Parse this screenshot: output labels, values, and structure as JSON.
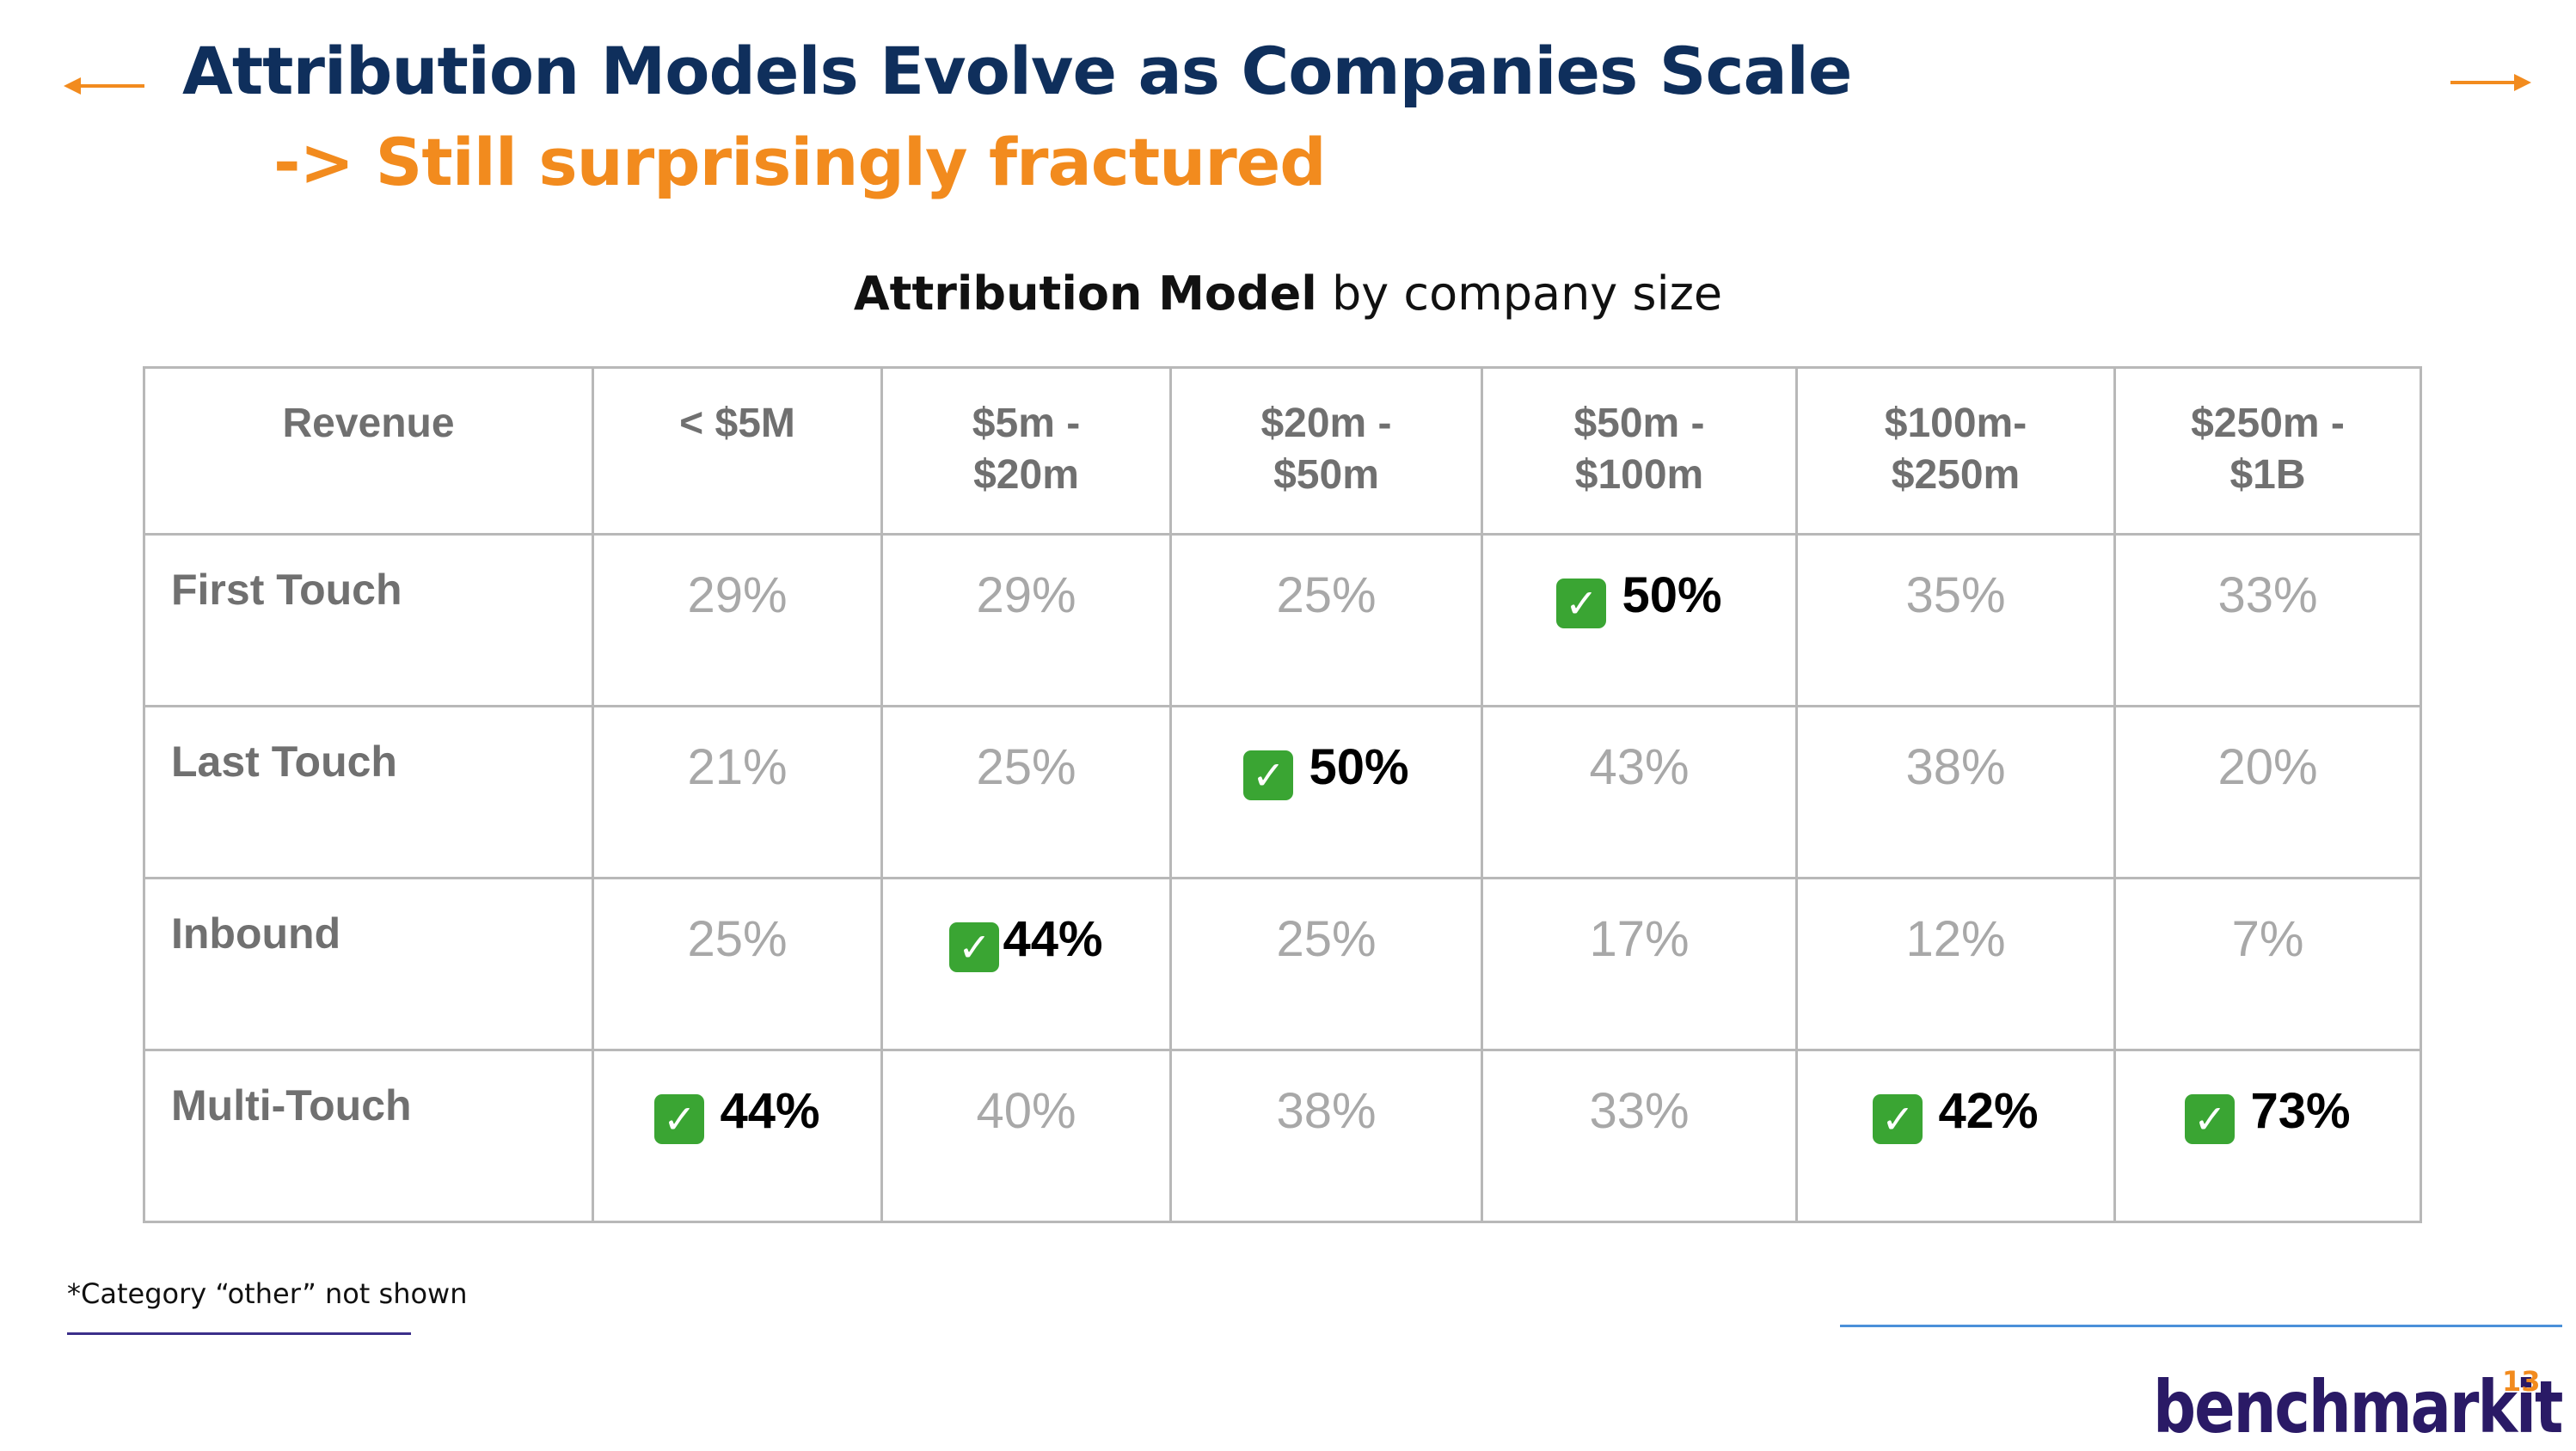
{
  "header": {
    "title": "Attribution Models Evolve as Companies Scale",
    "subtitle": "-> Still surprisingly fractured"
  },
  "colors": {
    "title": "#0f2f5c",
    "accent": "#f28b1e",
    "check": "#3aa533",
    "logo": "#2a1a66",
    "footnote_line": "#3b2f8a",
    "right_line": "#4a90d9"
  },
  "icons": {
    "check": "check-mark-icon",
    "left_arrow": "arrow-left-icon",
    "right_arrow": "arrow-right-icon"
  },
  "chart_data": {
    "type": "table",
    "title_bold": "Attribution Model",
    "title_rest": "by company size",
    "row_header": "Revenue",
    "columns": [
      [
        "< $5M"
      ],
      [
        "$5m -",
        "$20m"
      ],
      [
        "$20m -",
        "$50m"
      ],
      [
        "$50m -",
        "$100m"
      ],
      [
        "$100m-",
        "$250m"
      ],
      [
        "$250m -",
        "$1B"
      ]
    ],
    "rows": [
      {
        "label": "First Touch",
        "values": [
          "29%",
          "29%",
          "25%",
          "50%",
          "35%",
          "33%"
        ],
        "best_index": 3
      },
      {
        "label": "Last Touch",
        "values": [
          "21%",
          "25%",
          "50%",
          "43%",
          "38%",
          "20%"
        ],
        "best_index": 2
      },
      {
        "label": "Inbound",
        "values": [
          "25%",
          "44%",
          "25%",
          "17%",
          "12%",
          "7%"
        ],
        "best_index": 1
      },
      {
        "label": "Multi-Touch",
        "values": [
          "44%",
          "40%",
          "38%",
          "33%",
          "42%",
          "73%"
        ],
        "best_indices": [
          0,
          4,
          5
        ]
      }
    ]
  },
  "footer": {
    "footnote": "*Category “other” not shown",
    "logo": "benchmarkit",
    "page_number": "13"
  }
}
